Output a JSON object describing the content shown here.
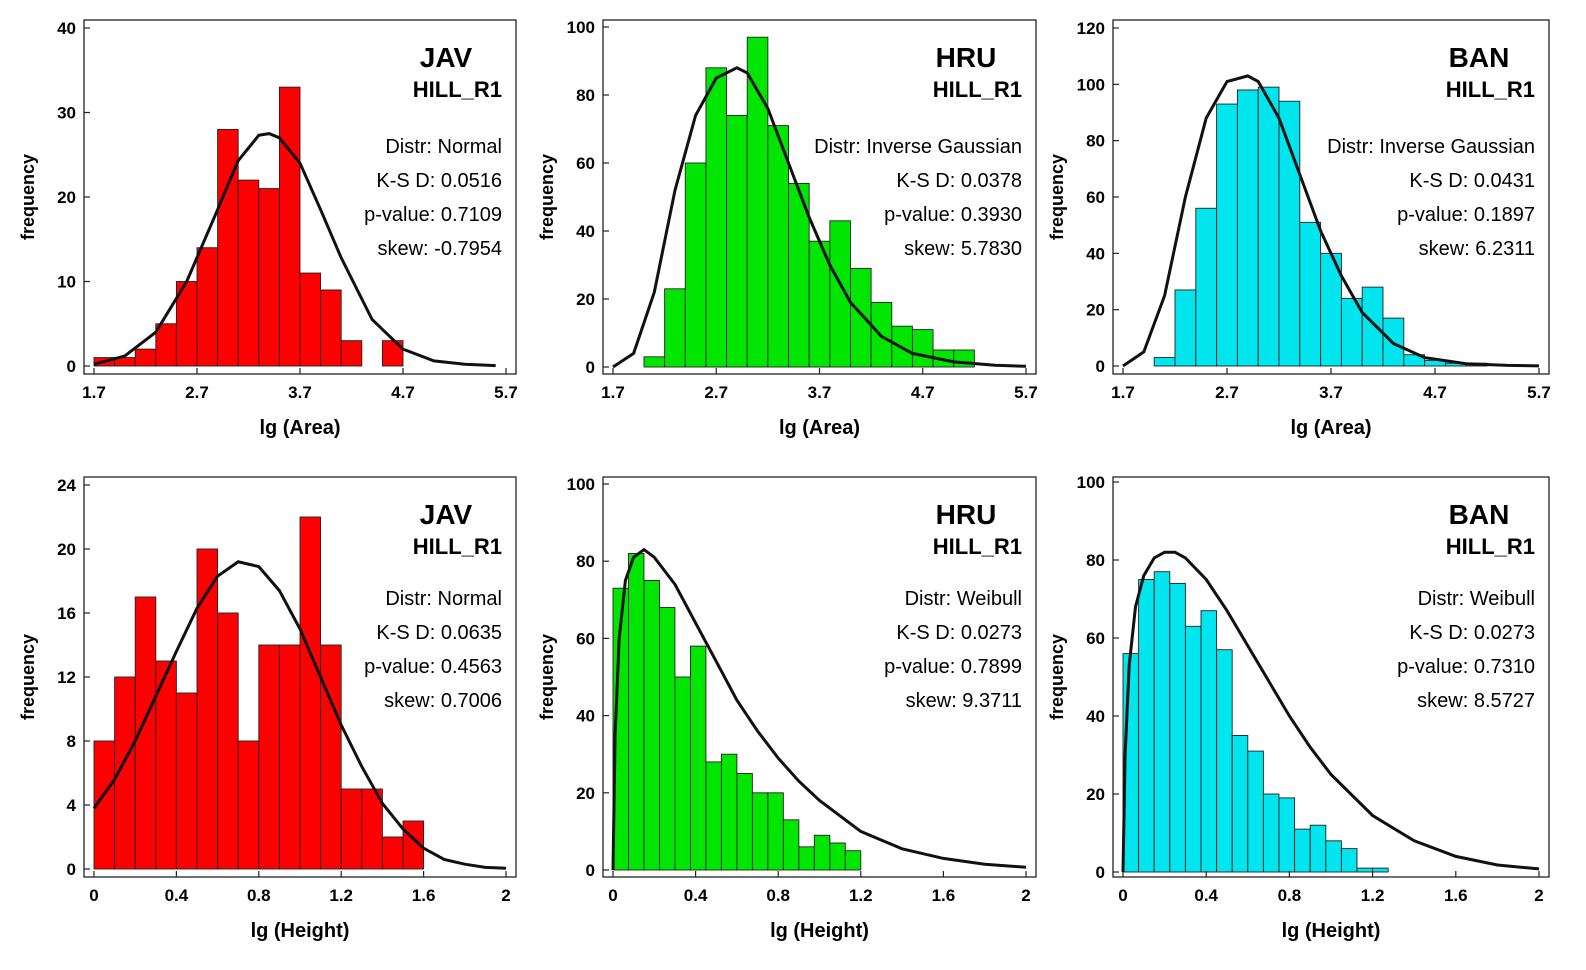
{
  "chart_data": [
    {
      "type": "bar",
      "site": "JAV",
      "region": "HILL_R1",
      "stats": [
        "Distr: Normal",
        "K-S D: 0.0516",
        "p-value: 0.7109",
        "skew: -0.7954"
      ],
      "xlabel": "lg (Area)",
      "ylabel": "frequency",
      "xlim": [
        1.7,
        5.7
      ],
      "ylim": [
        0,
        40
      ],
      "xticks": [
        1.7,
        2.7,
        3.7,
        4.7,
        5.7
      ],
      "xtick_labels": [
        "1.7",
        "2.7",
        "3.7",
        "4.7",
        "5.7"
      ],
      "yticks": [
        0,
        10,
        20,
        30,
        40
      ],
      "ytick_labels": [
        "0",
        "10",
        "20",
        "30",
        "40"
      ],
      "bar_color": "#ff0000",
      "bin_start": 1.7,
      "bin_width": 0.2,
      "values": [
        1,
        1,
        2,
        5,
        10,
        14,
        28,
        22,
        21,
        33,
        11,
        9,
        3,
        0,
        3
      ],
      "fit_curve": {
        "x": [
          1.7,
          2.0,
          2.3,
          2.6,
          2.9,
          3.1,
          3.3,
          3.4,
          3.5,
          3.7,
          3.9,
          4.1,
          4.4,
          4.7,
          5.0,
          5.3,
          5.6
        ],
        "y": [
          0.2,
          1.2,
          4,
          10,
          18.5,
          24.3,
          27.3,
          27.5,
          27,
          24,
          18.5,
          12.8,
          5.5,
          2,
          0.6,
          0.2,
          0.05
        ]
      }
    },
    {
      "type": "bar",
      "site": "HRU",
      "region": "HILL_R1",
      "stats": [
        "Distr: Inverse Gaussian",
        "K-S D: 0.0378",
        "p-value: 0.3930",
        "skew: 5.7830"
      ],
      "xlabel": "lg (Area)",
      "ylabel": "frequency",
      "xlim": [
        1.7,
        5.7
      ],
      "ylim": [
        0,
        100
      ],
      "xticks": [
        1.7,
        2.7,
        3.7,
        4.7,
        5.7
      ],
      "xtick_labels": [
        "1.7",
        "2.7",
        "3.7",
        "4.7",
        "5.7"
      ],
      "yticks": [
        0,
        20,
        40,
        60,
        80,
        100
      ],
      "ytick_labels": [
        "0",
        "20",
        "40",
        "60",
        "80",
        "100"
      ],
      "bar_color": "#00e600",
      "bin_start": 2.0,
      "bin_width": 0.2,
      "values": [
        3,
        23,
        60,
        88,
        74,
        97,
        71,
        54,
        37,
        43,
        29,
        19,
        12,
        11,
        5,
        5
      ],
      "fit_curve": {
        "x": [
          1.7,
          1.9,
          2.1,
          2.3,
          2.5,
          2.7,
          2.9,
          3.0,
          3.2,
          3.4,
          3.6,
          3.8,
          4.0,
          4.3,
          4.6,
          5.0,
          5.4,
          5.7
        ],
        "y": [
          0,
          4,
          22,
          52,
          74,
          85,
          88,
          86.5,
          76,
          60,
          44,
          30,
          19,
          9,
          4,
          1.5,
          0.5,
          0.2
        ]
      }
    },
    {
      "type": "bar",
      "site": "BAN",
      "region": "HILL_R1",
      "stats": [
        "Distr: Inverse Gaussian",
        "K-S D: 0.0431",
        "p-value: 0.1897",
        "skew: 6.2311"
      ],
      "xlabel": "lg (Area)",
      "ylabel": "frequency",
      "xlim": [
        1.7,
        5.7
      ],
      "ylim": [
        0,
        120
      ],
      "xticks": [
        1.7,
        2.7,
        3.7,
        4.7,
        5.7
      ],
      "xtick_labels": [
        "1.7",
        "2.7",
        "3.7",
        "4.7",
        "5.7"
      ],
      "yticks": [
        0,
        20,
        40,
        60,
        80,
        100,
        120
      ],
      "ytick_labels": [
        "0",
        "20",
        "40",
        "60",
        "80",
        "100",
        "120"
      ],
      "bar_color": "#00e5ee",
      "bin_start": 2.0,
      "bin_width": 0.2,
      "values": [
        3,
        27,
        56,
        93,
        98,
        99,
        94,
        51,
        40,
        24,
        28,
        17,
        4,
        2,
        1,
        1
      ],
      "fit_curve": {
        "x": [
          1.7,
          1.9,
          2.1,
          2.3,
          2.5,
          2.7,
          2.9,
          3.0,
          3.2,
          3.4,
          3.6,
          3.8,
          4.0,
          4.3,
          4.6,
          5.0,
          5.4,
          5.7
        ],
        "y": [
          0,
          5,
          25,
          60,
          88,
          101,
          103,
          101,
          88,
          68,
          48,
          32,
          19,
          8,
          3,
          0.8,
          0.2,
          0.05
        ]
      }
    },
    {
      "type": "bar",
      "site": "JAV",
      "region": "HILL_R1",
      "stats": [
        "Distr: Normal",
        "K-S D: 0.0635",
        "p-value: 0.4563",
        "skew: 0.7006"
      ],
      "xlabel": "lg (Height)",
      "ylabel": "frequency",
      "xlim": [
        0,
        2
      ],
      "ylim": [
        0,
        24
      ],
      "xticks": [
        0,
        0.4,
        0.8,
        1.2,
        1.6,
        2
      ],
      "xtick_labels": [
        "0",
        "0.4",
        "0.8",
        "1.2",
        "1.6",
        "2"
      ],
      "yticks": [
        0,
        4,
        8,
        12,
        16,
        20,
        24
      ],
      "ytick_labels": [
        "0",
        "4",
        "8",
        "12",
        "16",
        "20",
        "24"
      ],
      "bar_color": "#ff0000",
      "bin_start": 0,
      "bin_width": 0.1,
      "values": [
        8,
        12,
        17,
        13,
        11,
        20,
        16,
        8,
        14,
        14,
        22,
        14,
        5,
        5,
        2,
        3
      ],
      "fit_curve": {
        "x": [
          0,
          0.1,
          0.2,
          0.3,
          0.4,
          0.5,
          0.6,
          0.7,
          0.8,
          0.9,
          1.0,
          1.1,
          1.2,
          1.3,
          1.4,
          1.5,
          1.6,
          1.7,
          1.8,
          1.9,
          2.0
        ],
        "y": [
          3.8,
          5.6,
          8.0,
          10.8,
          13.6,
          16.3,
          18.3,
          19.2,
          18.9,
          17.4,
          15.0,
          12.0,
          9.0,
          6.4,
          4.1,
          2.5,
          1.3,
          0.6,
          0.3,
          0.1,
          0.05
        ]
      }
    },
    {
      "type": "bar",
      "site": "HRU",
      "region": "HILL_R1",
      "stats": [
        "Distr: Weibull",
        "K-S D: 0.0273",
        "p-value: 0.7899",
        "skew: 9.3711"
      ],
      "xlabel": "lg (Height)",
      "ylabel": "frequency",
      "xlim": [
        0,
        2
      ],
      "ylim": [
        0,
        100
      ],
      "xticks": [
        0,
        0.4,
        0.8,
        1.2,
        1.6,
        2
      ],
      "xtick_labels": [
        "0",
        "0.4",
        "0.8",
        "1.2",
        "1.6",
        "2"
      ],
      "yticks": [
        0,
        20,
        40,
        60,
        80,
        100
      ],
      "ytick_labels": [
        "0",
        "20",
        "40",
        "60",
        "80",
        "100"
      ],
      "bar_color": "#00e600",
      "bin_start": 0,
      "bin_width": 0.075,
      "values": [
        73,
        82,
        75,
        68,
        50,
        58,
        28,
        30,
        25,
        20,
        20,
        13,
        6,
        9,
        7,
        5
      ],
      "fit_curve": {
        "x": [
          0,
          0.01,
          0.03,
          0.06,
          0.1,
          0.15,
          0.2,
          0.3,
          0.4,
          0.5,
          0.6,
          0.7,
          0.8,
          0.9,
          1.0,
          1.2,
          1.4,
          1.6,
          1.8,
          2.0
        ],
        "y": [
          0,
          35,
          60,
          75,
          81,
          83,
          81,
          74,
          64,
          54,
          44,
          36,
          29,
          23,
          18,
          10,
          5.5,
          3,
          1.5,
          0.7
        ]
      }
    },
    {
      "type": "bar",
      "site": "BAN",
      "region": "HILL_R1",
      "stats": [
        "Distr: Weibull",
        "K-S D: 0.0273",
        "p-value: 0.7310",
        "skew: 8.5727"
      ],
      "xlabel": "lg (Height)",
      "ylabel": "frequency",
      "xlim": [
        0,
        2
      ],
      "ylim": [
        0,
        100
      ],
      "xticks": [
        0,
        0.4,
        0.8,
        1.2,
        1.6,
        2
      ],
      "xtick_labels": [
        "0",
        "0.4",
        "0.8",
        "1.2",
        "1.6",
        "2"
      ],
      "yticks": [
        0,
        20,
        40,
        60,
        80,
        100
      ],
      "ytick_labels": [
        "0",
        "20",
        "40",
        "60",
        "80",
        "100"
      ],
      "bar_color": "#00e5ee",
      "bin_start": 0,
      "bin_width": 0.075,
      "values": [
        56,
        75,
        77,
        74,
        63,
        67,
        57,
        35,
        31,
        20,
        19,
        11,
        12,
        8,
        6,
        1,
        1
      ],
      "fit_curve": {
        "x": [
          0,
          0.01,
          0.03,
          0.06,
          0.1,
          0.15,
          0.2,
          0.25,
          0.3,
          0.4,
          0.5,
          0.6,
          0.7,
          0.8,
          0.9,
          1.0,
          1.2,
          1.4,
          1.6,
          1.8,
          2.0
        ],
        "y": [
          0,
          30,
          53,
          68,
          76,
          80.5,
          82,
          82,
          80.5,
          75,
          67,
          58,
          49,
          40,
          32,
          25,
          14.5,
          8,
          4,
          1.8,
          0.8
        ]
      }
    }
  ]
}
